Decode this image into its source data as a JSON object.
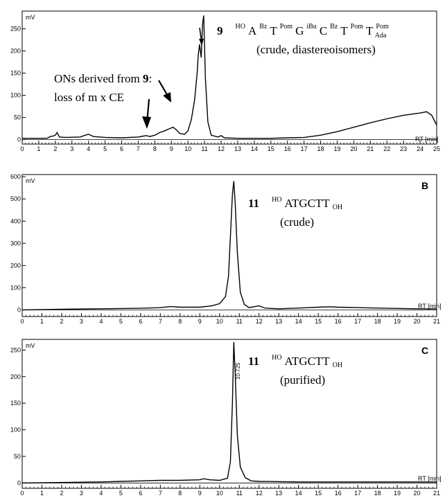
{
  "chart_data": [
    {
      "type": "line",
      "panel": "A",
      "y_unit": "mV",
      "x_unit": "RT [min]",
      "xlim": [
        0,
        25
      ],
      "ylim": [
        -10,
        290
      ],
      "x_ticks": [
        "0",
        "1",
        "2",
        "3",
        "4",
        "5",
        "6",
        "7",
        "8",
        "9",
        "10",
        "11",
        "12",
        "13",
        "14",
        "15",
        "16",
        "17",
        "18",
        "19",
        "20",
        "21",
        "22",
        "23",
        "24",
        "25"
      ],
      "y_ticks": [
        "0",
        "50",
        "100",
        "150",
        "200",
        "250"
      ],
      "annotations": {
        "compound_number": "9",
        "sequence_prefix": "HO",
        "sequence": [
          {
            "base": "A",
            "sup": "Bz"
          },
          {
            "base": "T",
            "sup": "Pom"
          },
          {
            "base": "G",
            "sup": "iBu"
          },
          {
            "base": "C",
            "sup": "Bz"
          },
          {
            "base": "T",
            "sup": "Pom"
          },
          {
            "base": "T",
            "sup": "Pom"
          }
        ],
        "sequence_suffix": "Ada",
        "note": "(crude, diastereoisomers)",
        "side_note_line1": "ONs derived from ",
        "side_note_bold": "9",
        "side_note_colon": ":",
        "side_note_line2": "loss of m x CE"
      },
      "x": [
        0,
        1.5,
        1.7,
        1.85,
        2.0,
        2.1,
        2.25,
        2.6,
        3.5,
        3.8,
        4.0,
        4.3,
        5,
        6,
        7,
        7.3,
        7.5,
        7.7,
        8.0,
        8.3,
        8.6,
        8.9,
        9.1,
        9.3,
        9.5,
        9.8,
        10.0,
        10.2,
        10.4,
        10.55,
        10.62,
        10.7,
        10.8,
        10.88,
        10.95,
        11.05,
        11.2,
        11.4,
        11.8,
        12.0,
        12.2,
        13,
        14,
        15,
        16,
        17,
        18,
        19,
        20,
        21,
        22,
        23,
        24,
        24.4,
        24.7,
        25
      ],
      "y": [
        3,
        3,
        7,
        8,
        10,
        16,
        6,
        5,
        6,
        10,
        12,
        7,
        5,
        4,
        6,
        8,
        9,
        7,
        10,
        16,
        20,
        25,
        28,
        22,
        14,
        12,
        20,
        45,
        90,
        150,
        190,
        215,
        185,
        260,
        280,
        140,
        40,
        10,
        6,
        9,
        4,
        3,
        3,
        3,
        4,
        5,
        10,
        18,
        28,
        38,
        47,
        55,
        60,
        63,
        55,
        33
      ]
    },
    {
      "type": "line",
      "panel": "B",
      "y_unit": "mV",
      "x_unit": "RT [min]",
      "xlim": [
        0,
        21
      ],
      "ylim": [
        -30,
        610
      ],
      "x_ticks": [
        "0",
        "1",
        "2",
        "3",
        "4",
        "5",
        "6",
        "7",
        "8",
        "9",
        "10",
        "11",
        "12",
        "13",
        "14",
        "15",
        "16",
        "17",
        "18",
        "19",
        "20",
        "21"
      ],
      "y_ticks": [
        "0",
        "100",
        "200",
        "300",
        "400",
        "500",
        "600"
      ],
      "annotations": {
        "compound_number": "11",
        "sequence_prefix": "HO",
        "sequence_main": "ATGCTT",
        "sequence_suffix": "OH",
        "note": "(crude)"
      },
      "x": [
        0,
        2,
        4,
        6,
        7,
        7.5,
        8,
        9,
        9.6,
        10.0,
        10.3,
        10.45,
        10.55,
        10.65,
        10.72,
        10.8,
        10.9,
        11.05,
        11.25,
        11.5,
        11.8,
        12.0,
        12.3,
        13,
        14,
        15,
        15.6,
        16,
        18,
        20,
        21
      ],
      "y": [
        0,
        3,
        5,
        7,
        10,
        15,
        12,
        12,
        18,
        28,
        60,
        150,
        330,
        520,
        580,
        470,
        260,
        80,
        25,
        10,
        15,
        18,
        8,
        5,
        8,
        12,
        14,
        12,
        8,
        5,
        4
      ]
    },
    {
      "type": "line",
      "panel": "C",
      "y_unit": "mV",
      "x_unit": "RT [min]",
      "xlim": [
        0,
        21
      ],
      "ylim": [
        -10,
        270
      ],
      "x_ticks": [
        "0",
        "1",
        "2",
        "3",
        "4",
        "5",
        "6",
        "7",
        "8",
        "9",
        "10",
        "11",
        "12",
        "13",
        "14",
        "15",
        "16",
        "17",
        "18",
        "19",
        "20",
        "21"
      ],
      "y_ticks": [
        "0",
        "50",
        "100",
        "150",
        "200",
        "250"
      ],
      "annotations": {
        "compound_number": "11",
        "sequence_prefix": "HO",
        "sequence_main": "ATGCTT",
        "sequence_suffix": "OH",
        "note": "(purified)",
        "peak_label": "10.725"
      },
      "x": [
        0,
        2,
        4,
        5,
        6,
        7,
        8,
        9,
        9.2,
        9.5,
        10.0,
        10.4,
        10.55,
        10.65,
        10.72,
        10.8,
        10.9,
        11.05,
        11.3,
        11.6,
        12,
        14,
        16,
        18,
        20,
        21
      ],
      "y": [
        0,
        1,
        2,
        3,
        4,
        5,
        5,
        6,
        8,
        6,
        5,
        9,
        40,
        150,
        265,
        200,
        90,
        30,
        10,
        4,
        3,
        2,
        2,
        2,
        2,
        2
      ]
    }
  ],
  "panel_letters": {
    "b": "B",
    "c": "C"
  }
}
